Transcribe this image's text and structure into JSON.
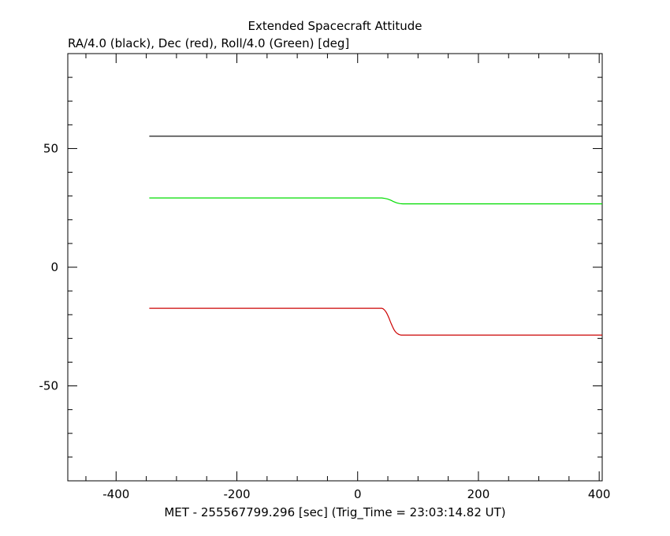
{
  "chart_data": {
    "type": "line",
    "title": "Extended Spacecraft Attitude",
    "subtitle": "RA/4.0 (black), Dec (red), Roll/4.0 (Green) [deg]",
    "xlabel": "MET - 255567799.296 [sec] (Trig_Time = 23:03:14.82 UT)",
    "ylabel": "",
    "xlim": [
      -480,
      405
    ],
    "ylim": [
      -90,
      90
    ],
    "x_ticks": [
      -400,
      -200,
      0,
      200,
      400
    ],
    "x_tick_labels": [
      "-400",
      "-200",
      "0",
      "200",
      "400"
    ],
    "y_ticks": [
      -50,
      0,
      50
    ],
    "y_tick_labels": [
      "-50",
      "0",
      "50"
    ],
    "grid": false,
    "series": [
      {
        "color": "#000000",
        "x": [
          -345,
          405
        ],
        "y": [
          55.2,
          55.2
        ]
      },
      {
        "color": "#00dd00",
        "x": [
          -345,
          40,
          45,
          50,
          55,
          60,
          65,
          70,
          75,
          405
        ],
        "y": [
          29.2,
          29.2,
          29.0,
          28.7,
          28.2,
          27.6,
          27.1,
          26.8,
          26.7,
          26.7
        ]
      },
      {
        "color": "#cc0000",
        "x": [
          -345,
          40,
          42,
          44,
          46,
          48,
          50,
          52,
          54,
          56,
          58,
          60,
          62,
          64,
          66,
          68,
          70,
          72,
          74,
          405
        ],
        "y": [
          -17.3,
          -17.3,
          -17.5,
          -17.9,
          -18.5,
          -19.3,
          -20.3,
          -21.5,
          -22.8,
          -24.0,
          -25.2,
          -26.2,
          -27.0,
          -27.6,
          -28.0,
          -28.3,
          -28.5,
          -28.6,
          -28.6,
          -28.6
        ]
      }
    ]
  }
}
